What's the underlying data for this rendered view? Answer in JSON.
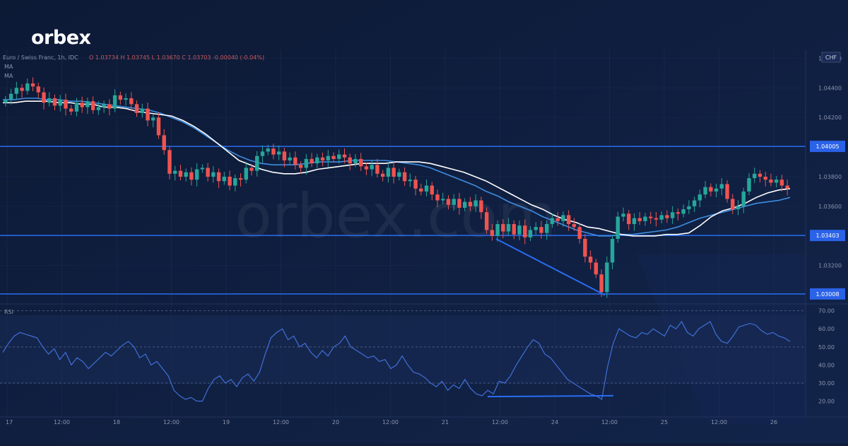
{
  "brand": {
    "logo_text": "orbex",
    "watermark_text": "orbex.com"
  },
  "colors": {
    "background": "#0f1d3a",
    "panel": "#13234a",
    "grid": "#1e2f57",
    "up_candle": "#26a69a",
    "down_candle": "#ef5350",
    "ma_fast": "#ffffff",
    "ma_slow": "#3f8de0",
    "level_line": "#2a6cf0",
    "rsi_line": "#3f6fd6",
    "axis_text": "#8a94ad",
    "label_bg": "#2a62e8"
  },
  "chart_header": {
    "symbol": "Euro / Swiss Franc, 1h, IDC",
    "ohlc": "O 1.03734  H 1.03745  L 1.03670  C 1.03703  -0.00040 (-0.04%)",
    "indicator_1": "MA",
    "indicator_2": "MA",
    "currency": "CHF"
  },
  "chart_data": [
    {
      "type": "candlestick",
      "timeframe": "1h",
      "x_ticks": [
        "17",
        "12:00",
        "18",
        "12:00",
        "19",
        "12:00",
        "20",
        "12:00",
        "21",
        "12:00",
        "24",
        "12:00",
        "25",
        "12:00",
        "26"
      ],
      "y_ticks": [
        "1.04600",
        "1.04400",
        "1.04200",
        "1.03800",
        "1.03600",
        "1.03200"
      ],
      "ylim": [
        1.0295,
        1.0465
      ],
      "levels": [
        {
          "value": 1.04005,
          "label": "1.04005"
        },
        {
          "value": 1.03403,
          "label": "1.03403"
        },
        {
          "value": 1.03008,
          "label": "1.03008"
        }
      ],
      "candles_close_path": [
        1.0432,
        1.0436,
        1.044,
        1.0438,
        1.0443,
        1.0441,
        1.0437,
        1.043,
        1.0433,
        1.0428,
        1.0432,
        1.0426,
        1.0424,
        1.043,
        1.0427,
        1.0431,
        1.0425,
        1.0427,
        1.0429,
        1.0426,
        1.0435,
        1.0432,
        1.0433,
        1.0429,
        1.0423,
        1.0426,
        1.0418,
        1.042,
        1.0408,
        1.0398,
        1.0382,
        1.0384,
        1.038,
        1.0383,
        1.0378,
        1.0385,
        1.0386,
        1.038,
        1.0383,
        1.0377,
        1.038,
        1.0374,
        1.0379,
        1.0378,
        1.0386,
        1.0384,
        1.0394,
        1.0397,
        1.0399,
        1.0395,
        1.0397,
        1.0391,
        1.0393,
        1.0388,
        1.0386,
        1.0392,
        1.0389,
        1.0393,
        1.0391,
        1.0394,
        1.0392,
        1.0395,
        1.0393,
        1.0389,
        1.0392,
        1.0387,
        1.0385,
        1.0388,
        1.0382,
        1.038,
        1.0386,
        1.038,
        1.0383,
        1.0377,
        1.0378,
        1.0372,
        1.037,
        1.0374,
        1.0368,
        1.0364,
        1.0365,
        1.0361,
        1.0365,
        1.0359,
        1.0363,
        1.036,
        1.0364,
        1.0356,
        1.0344,
        1.034,
        1.0348,
        1.0343,
        1.0348,
        1.0341,
        1.0347,
        1.0339,
        1.0344,
        1.0346,
        1.0342,
        1.0348,
        1.0352,
        1.035,
        1.0354,
        1.0348,
        1.0346,
        1.0338,
        1.0326,
        1.0322,
        1.0314,
        1.0302,
        1.0322,
        1.0338,
        1.0353,
        1.0355,
        1.0348,
        1.0352,
        1.035,
        1.0353,
        1.0352,
        1.0351,
        1.0354,
        1.0352,
        1.0356,
        1.0355,
        1.0358,
        1.036,
        1.0364,
        1.0368,
        1.0373,
        1.037,
        1.0372,
        1.0375,
        1.0365,
        1.0358,
        1.036,
        1.037,
        1.0379,
        1.0382,
        1.038,
        1.0378,
        1.0376,
        1.0378,
        1.0374,
        1.0372
      ],
      "ma_fast": [
        1.043,
        1.043,
        1.0431,
        1.0431,
        1.0431,
        1.043,
        1.043,
        1.0429,
        1.0429,
        1.0427,
        1.0427,
        1.0426,
        1.0424,
        1.0423,
        1.0422,
        1.0421,
        1.0418,
        1.0414,
        1.0409,
        1.0403,
        1.0397,
        1.0391,
        1.0388,
        1.0385,
        1.0383,
        1.0382,
        1.0382,
        1.0383,
        1.0385,
        1.0386,
        1.0387,
        1.0388,
        1.0389,
        1.0389,
        1.0389,
        1.039,
        1.039,
        1.039,
        1.0389,
        1.0387,
        1.0385,
        1.0383,
        1.038,
        1.0377,
        1.0373,
        1.0369,
        1.0365,
        1.0361,
        1.0358,
        1.0354,
        1.0351,
        1.0349,
        1.0346,
        1.0345,
        1.0343,
        1.0341,
        1.034,
        1.034,
        1.034,
        1.0341,
        1.0341,
        1.0342,
        1.0347,
        1.0353,
        1.0357,
        1.0359,
        1.0362,
        1.0366,
        1.0369,
        1.0371,
        1.0372
      ],
      "ma_slow": [
        1.0432,
        1.0432,
        1.0433,
        1.0433,
        1.0432,
        1.0432,
        1.0431,
        1.0431,
        1.043,
        1.0429,
        1.0428,
        1.0427,
        1.0426,
        1.0425,
        1.0423,
        1.042,
        1.0417,
        1.0413,
        1.0408,
        1.0403,
        1.0398,
        1.0394,
        1.0391,
        1.0389,
        1.0388,
        1.0388,
        1.0388,
        1.0389,
        1.039,
        1.039,
        1.039,
        1.0391,
        1.0391,
        1.0391,
        1.0391,
        1.039,
        1.0389,
        1.0388,
        1.0386,
        1.0383,
        1.038,
        1.0377,
        1.0374,
        1.037,
        1.0367,
        1.0363,
        1.036,
        1.0357,
        1.0353,
        1.035,
        1.0347,
        1.0344,
        1.0342,
        1.034,
        1.034,
        1.0341,
        1.0341,
        1.0342,
        1.0343,
        1.0344,
        1.0346,
        1.0349,
        1.0352,
        1.0354,
        1.0356,
        1.0358,
        1.036,
        1.0362,
        1.0363,
        1.0364,
        1.0366
      ],
      "trendline": {
        "from": {
          "x": "21 10:00",
          "y": 1.0338
        },
        "to": {
          "x": "24 10:00",
          "y": 1.03
        }
      }
    },
    {
      "type": "line",
      "title": "RSI",
      "y_ticks": [
        "70.00",
        "60.00",
        "50.00",
        "40.00",
        "30.00",
        "20.00"
      ],
      "ylim": [
        12,
        73
      ],
      "bands": [
        30,
        50,
        70
      ],
      "values": [
        47,
        52,
        56,
        58,
        57,
        56,
        55,
        50,
        46,
        49,
        43,
        47,
        40,
        44,
        42,
        38,
        41,
        44,
        47,
        45,
        48,
        51,
        53,
        50,
        44,
        46,
        40,
        42,
        38,
        34,
        26,
        23,
        21,
        22,
        20,
        20,
        27,
        32,
        34,
        30,
        32,
        28,
        33,
        35,
        31,
        36,
        46,
        55,
        58,
        60,
        54,
        56,
        50,
        52,
        47,
        44,
        48,
        45,
        50,
        52,
        56,
        50,
        48,
        46,
        44,
        45,
        42,
        43,
        38,
        40,
        45,
        40,
        36,
        35,
        33,
        30,
        28,
        31,
        26,
        29,
        27,
        32,
        27,
        24,
        23,
        26,
        24,
        31,
        30,
        34,
        40,
        45,
        50,
        54,
        52,
        46,
        44,
        40,
        36,
        32,
        30,
        28,
        26,
        24,
        23,
        21,
        39,
        52,
        60,
        58,
        56,
        55,
        58,
        57,
        60,
        58,
        56,
        62,
        60,
        64,
        58,
        56,
        60,
        62,
        64,
        57,
        53,
        52,
        56,
        61,
        62,
        63,
        62,
        59,
        57,
        58,
        56,
        55,
        53
      ],
      "trendline": {
        "from": {
          "x": "21 10:00",
          "y": 22.5
        },
        "to": {
          "x": "24 12:00",
          "y": 23.0
        }
      }
    }
  ]
}
